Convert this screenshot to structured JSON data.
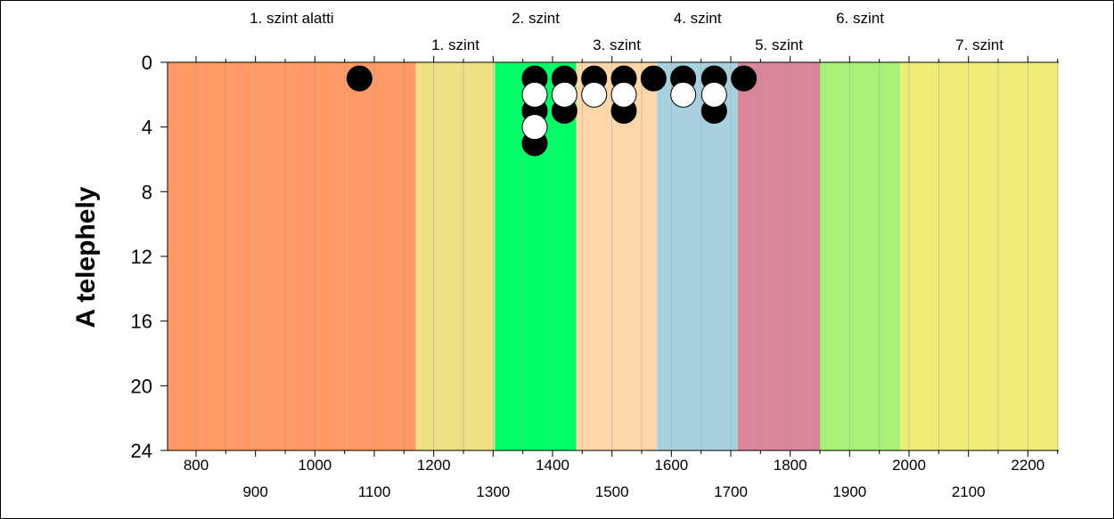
{
  "chart_data": {
    "type": "scatter",
    "title": "",
    "xlabel": "",
    "ylabel": "A telephely",
    "xlim": [
      752,
      2252
    ],
    "ylim": [
      24,
      0
    ],
    "x_ticks_top_row": [
      800,
      1000,
      1200,
      1400,
      1600,
      1800,
      2000,
      2200
    ],
    "x_ticks_bottom_row": [
      900,
      1100,
      1300,
      1500,
      1700,
      1900,
      2100
    ],
    "y_ticks": [
      0,
      4,
      8,
      12,
      16,
      20,
      24
    ],
    "bands": [
      {
        "label": "1. szint alatti",
        "from": 752,
        "to": 1170,
        "color": "#ff9966",
        "label_row": "top"
      },
      {
        "label": "1. szint",
        "from": 1170,
        "to": 1303,
        "color": "#ede184",
        "label_row": "bottom"
      },
      {
        "label": "2. szint",
        "from": 1303,
        "to": 1440,
        "color": "#00ff66",
        "label_row": "top"
      },
      {
        "label": "3. szint",
        "from": 1440,
        "to": 1576,
        "color": "#ffd6aa",
        "label_row": "bottom"
      },
      {
        "label": "4. szint",
        "from": 1576,
        "to": 1712,
        "color": "#a8d1e0",
        "label_row": "top"
      },
      {
        "label": "5. szint",
        "from": 1712,
        "to": 1850,
        "color": "#d98699",
        "label_row": "bottom"
      },
      {
        "label": "6. szint",
        "from": 1850,
        "to": 1985,
        "color": "#a8f078",
        "label_row": "top"
      },
      {
        "label": "7. szint",
        "from": 1985,
        "to": 2252,
        "color": "#eded78",
        "label_row": "bottom"
      }
    ],
    "series": [
      {
        "fill": "#000000",
        "points": [
          {
            "x": 1075,
            "y": 1
          },
          {
            "x": 1370,
            "y": 1
          },
          {
            "x": 1370,
            "y": 3
          },
          {
            "x": 1370,
            "y": 5
          },
          {
            "x": 1420,
            "y": 1
          },
          {
            "x": 1420,
            "y": 3
          },
          {
            "x": 1470,
            "y": 1
          },
          {
            "x": 1520,
            "y": 1
          },
          {
            "x": 1520,
            "y": 3
          },
          {
            "x": 1570,
            "y": 1
          },
          {
            "x": 1620,
            "y": 1
          },
          {
            "x": 1672,
            "y": 1
          },
          {
            "x": 1672,
            "y": 3
          },
          {
            "x": 1722,
            "y": 1
          }
        ]
      },
      {
        "fill": "#ffffff",
        "points": [
          {
            "x": 1370,
            "y": 2
          },
          {
            "x": 1370,
            "y": 4
          },
          {
            "x": 1420,
            "y": 2
          },
          {
            "x": 1470,
            "y": 2
          },
          {
            "x": 1520,
            "y": 2
          },
          {
            "x": 1620,
            "y": 2
          },
          {
            "x": 1672,
            "y": 2
          }
        ]
      }
    ],
    "grid": true
  }
}
